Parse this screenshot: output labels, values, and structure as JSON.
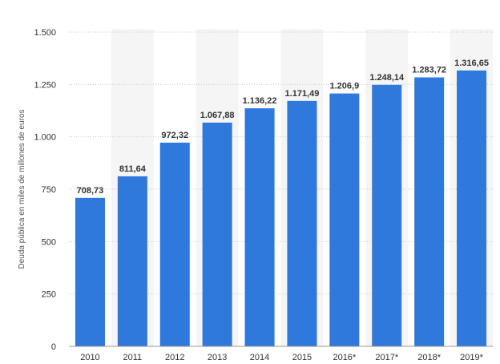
{
  "chart_data": {
    "type": "bar",
    "categories": [
      "2010",
      "2011",
      "2012",
      "2013",
      "2014",
      "2015",
      "2016*",
      "2017*",
      "2018*",
      "2019*"
    ],
    "values": [
      708.73,
      811.64,
      972.32,
      1067.88,
      1136.22,
      1171.49,
      1206.9,
      1248.14,
      1283.72,
      1316.65
    ],
    "value_labels": [
      "708,73",
      "811,64",
      "972,32",
      "1.067,88",
      "1.136,22",
      "1.171,49",
      "1.206,9",
      "1.248,14",
      "1.283,72",
      "1.316,65"
    ],
    "ylabel": "Deuda pública en miles de millones de euros",
    "xlabel": "",
    "ylim": [
      0,
      1500
    ],
    "yticks": [
      0,
      250,
      500,
      750,
      1000,
      1250,
      1500
    ],
    "ytick_labels": [
      "0",
      "250",
      "500",
      "750",
      "1.000",
      "1.250",
      "1.500"
    ],
    "grid": true,
    "legend": "none",
    "bar_color": "#2f78dc",
    "band_color": "#f5f5f5"
  }
}
